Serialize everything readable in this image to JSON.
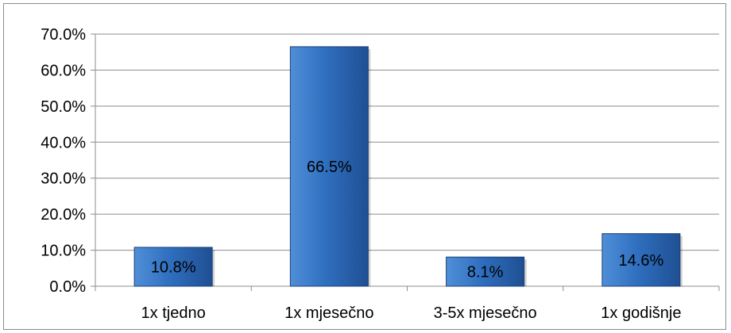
{
  "chart_data": {
    "type": "bar",
    "categories": [
      "1x tjedno",
      "1x mjesečno",
      "3-5x mjesečno",
      "1x godišnje"
    ],
    "values": [
      10.8,
      66.5,
      8.1,
      14.6
    ],
    "data_labels": [
      "10.8%",
      "66.5%",
      "8.1%",
      "14.6%"
    ],
    "y_ticks": [
      "0.0%",
      "10.0%",
      "20.0%",
      "30.0%",
      "40.0%",
      "50.0%",
      "60.0%",
      "70.0%"
    ],
    "ylim": [
      0,
      70
    ],
    "grid": true,
    "legend": "none",
    "title": "",
    "xlabel": "",
    "ylabel": "",
    "colors": {
      "bar_top": "#4f8fd8",
      "bar_mid": "#2f6fbf",
      "bar_bottom": "#1f4f93",
      "bar_edge": "#1c3f74",
      "grid": "#8c8c8c",
      "axis": "#8c8c8c"
    }
  }
}
